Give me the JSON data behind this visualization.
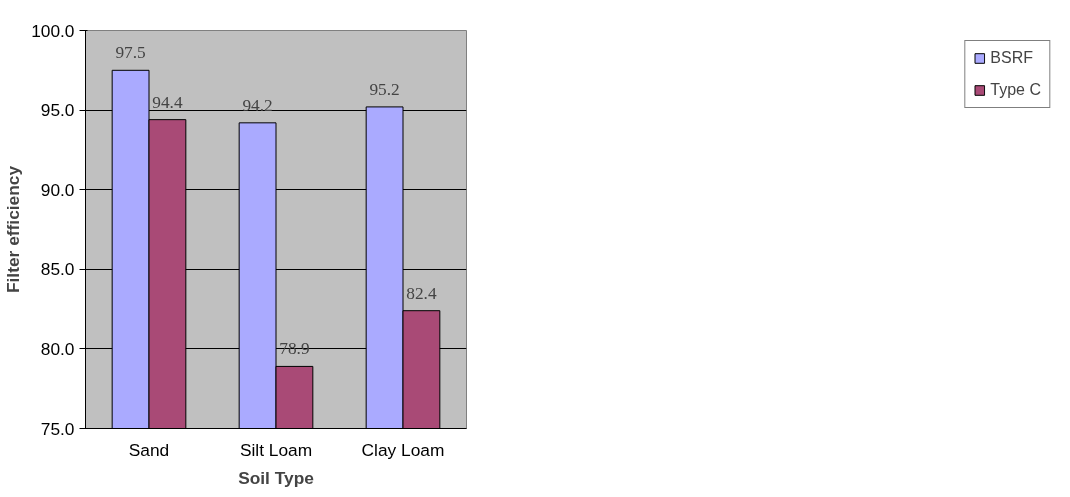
{
  "chart_data": {
    "type": "bar",
    "xlabel": "Soil Type",
    "ylabel": "Filter efficiency",
    "categories": [
      "Sand",
      "Silt Loam",
      "Clay Loam"
    ],
    "series": [
      {
        "name": "BSRF",
        "color": "#aaaaff",
        "values": [
          97.5,
          94.2,
          95.2
        ]
      },
      {
        "name": "Type C",
        "color": "#a94a76",
        "values": [
          94.4,
          78.9,
          82.4
        ]
      }
    ],
    "ylim": [
      75,
      100
    ],
    "yticks": [
      {
        "value": 75,
        "label": "75.0"
      },
      {
        "value": 80,
        "label": "80.0"
      },
      {
        "value": 85,
        "label": "85.0"
      },
      {
        "value": 90,
        "label": "90.0"
      },
      {
        "value": 95,
        "label": "95.0"
      },
      {
        "value": 100,
        "label": "100.0"
      }
    ],
    "grid": "y",
    "legend": "right",
    "data_labels": true
  }
}
